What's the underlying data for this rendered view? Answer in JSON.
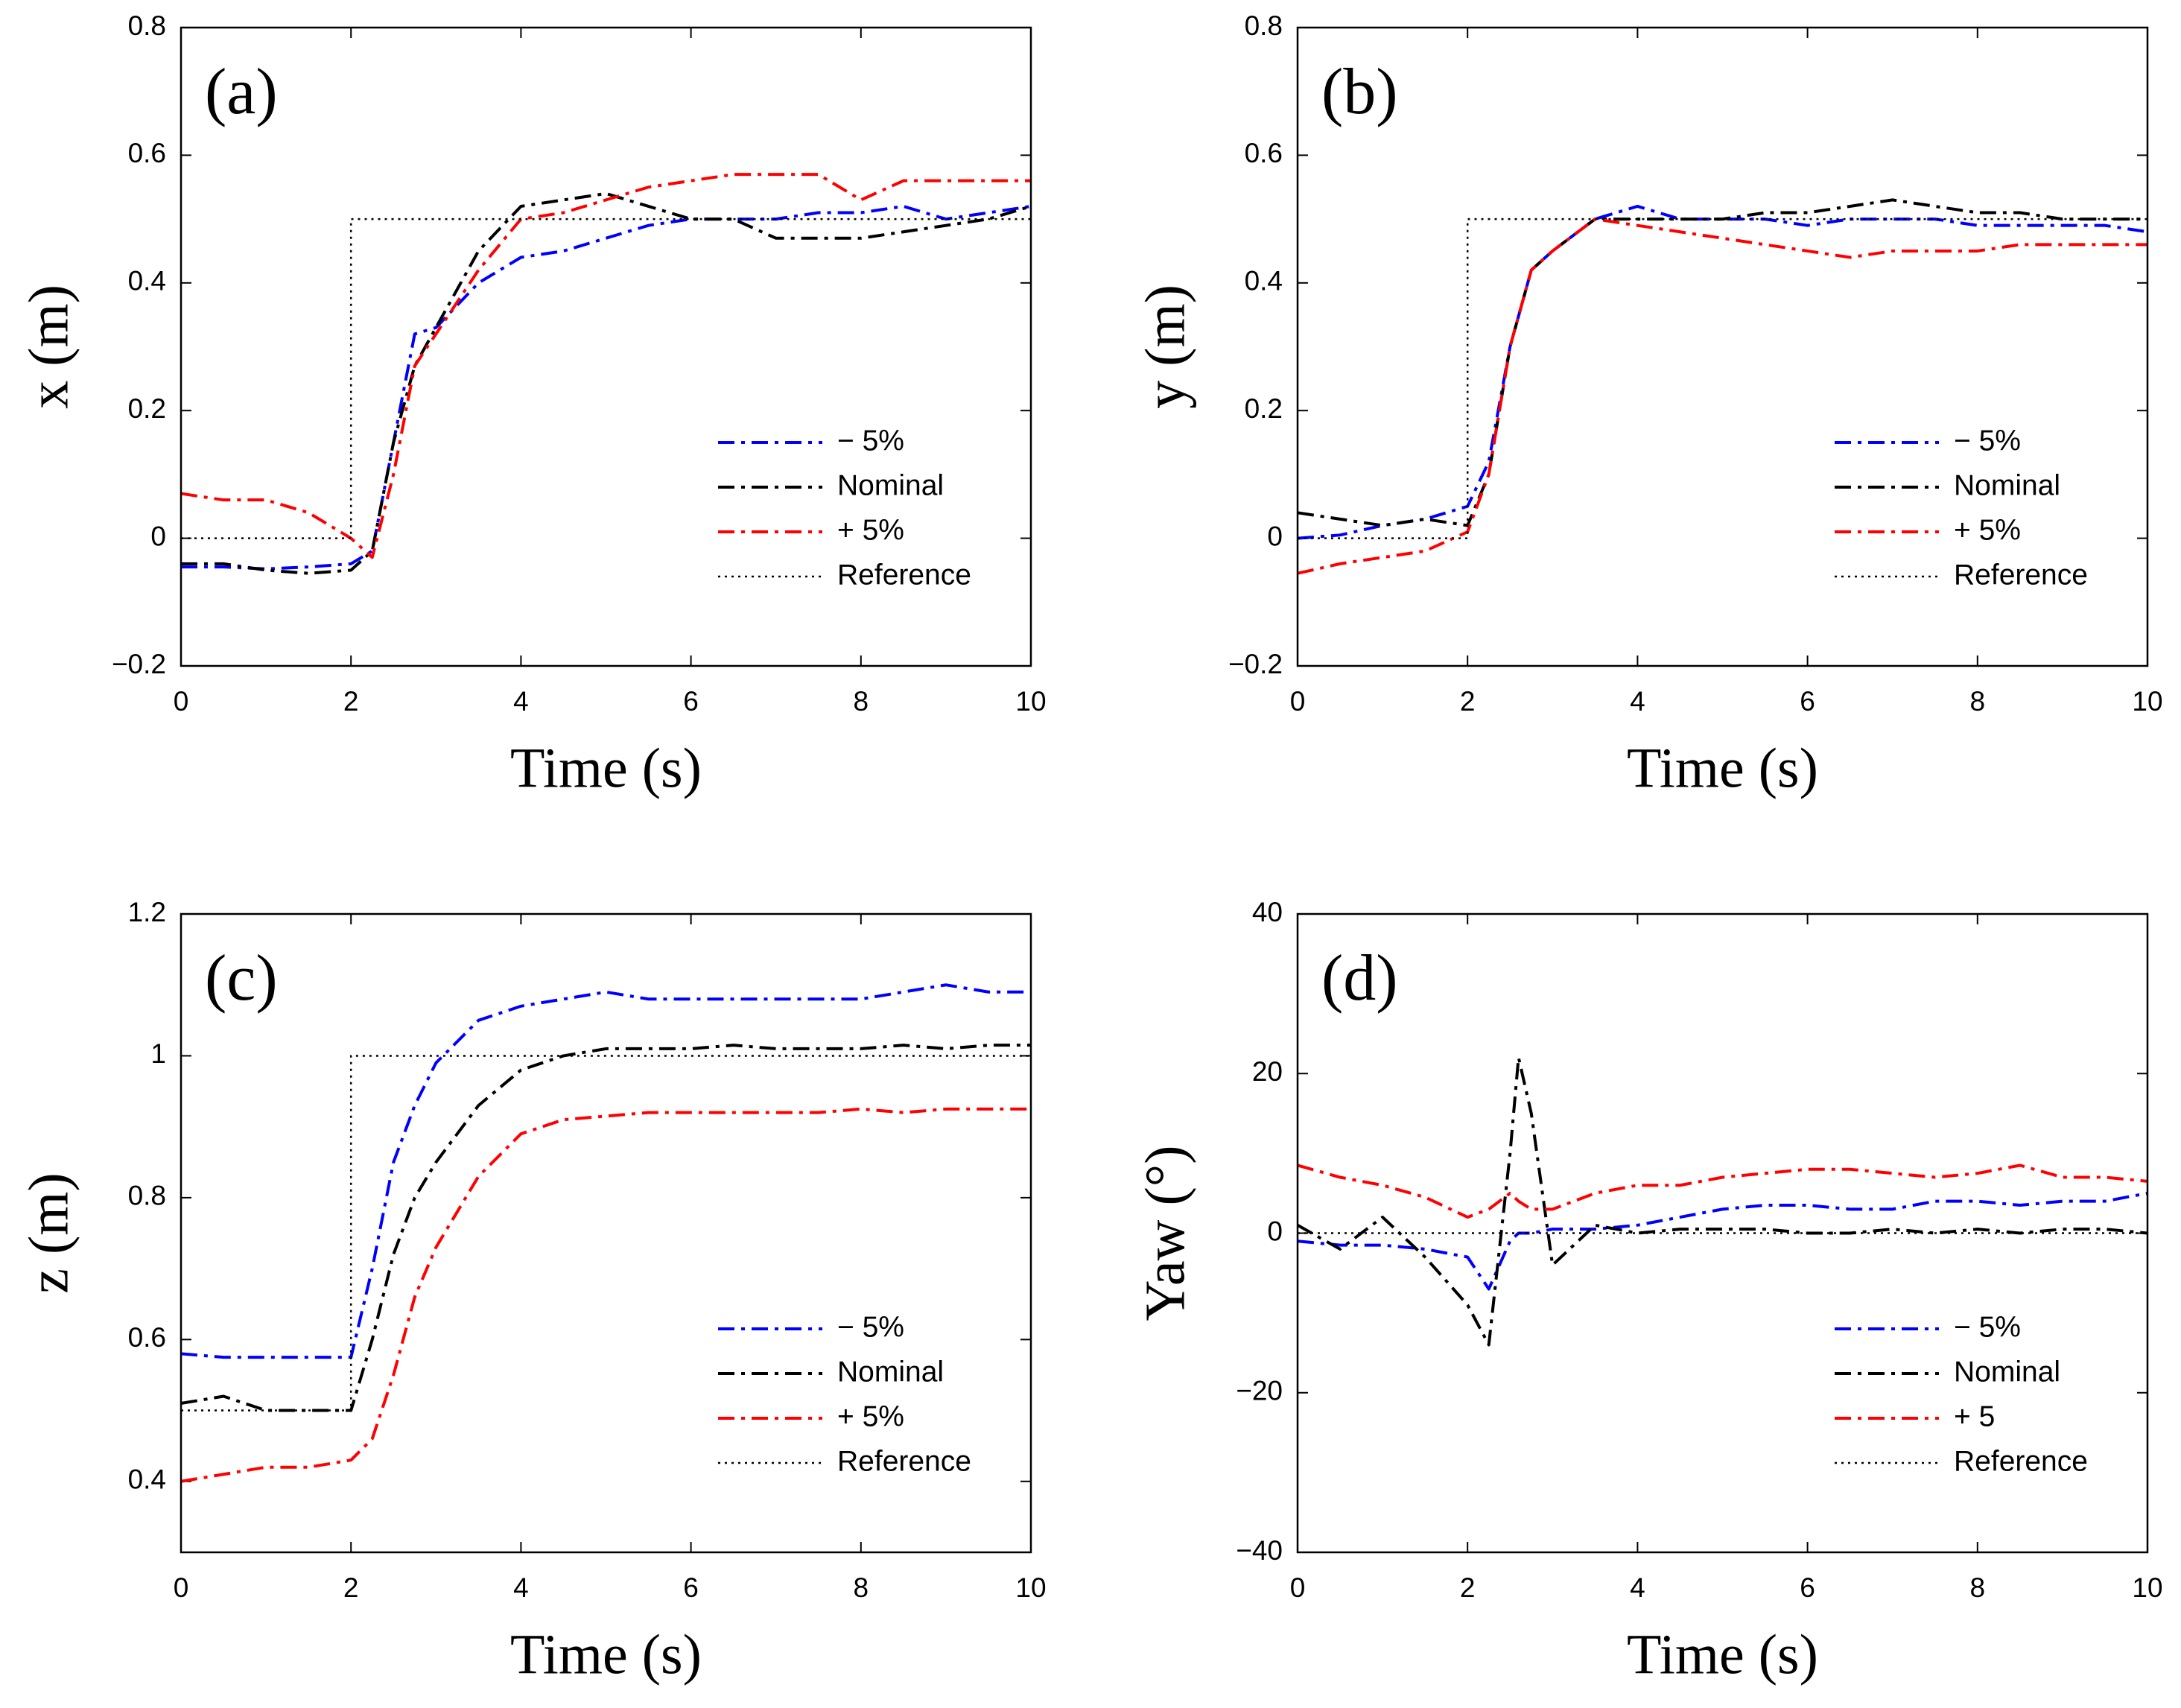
{
  "chart_data": [
    {
      "type": "line",
      "title": "(a)",
      "xlabel": "Time (s)",
      "ylabel": "x (m)",
      "legend": "lower right",
      "xlim": [
        0,
        10
      ],
      "xticks": [
        0,
        2,
        4,
        6,
        8,
        10
      ],
      "ylim": [
        -0.2,
        0.8
      ],
      "yticks": [
        {
          "value": -0.2,
          "label": "−0.2"
        },
        0,
        0.2,
        0.4,
        0.6,
        0.8
      ],
      "x": [
        0,
        0.5,
        1,
        1.5,
        2,
        2.25,
        2.5,
        2.75,
        3,
        3.5,
        4,
        4.5,
        5,
        5.5,
        6,
        6.5,
        7,
        7.5,
        8,
        8.5,
        9,
        9.5,
        10
      ],
      "series": [
        {
          "name": "− 5%",
          "color": "#0000ff",
          "dash": "dashdot",
          "values": [
            -0.045,
            -0.045,
            -0.048,
            -0.045,
            -0.04,
            -0.02,
            0.15,
            0.32,
            0.33,
            0.4,
            0.44,
            0.45,
            0.47,
            0.49,
            0.5,
            0.5,
            0.5,
            0.51,
            0.51,
            0.52,
            0.5,
            0.51,
            0.52
          ]
        },
        {
          "name": "Nominal",
          "color": "#000000",
          "dash": "dashdot",
          "values": [
            -0.04,
            -0.04,
            -0.05,
            -0.055,
            -0.05,
            -0.02,
            0.15,
            0.27,
            0.33,
            0.45,
            0.52,
            0.53,
            0.54,
            0.52,
            0.5,
            0.5,
            0.47,
            0.47,
            0.47,
            0.48,
            0.49,
            0.5,
            0.52
          ]
        },
        {
          "name": "+ 5%",
          "color": "#ff0000",
          "dash": "dashdot",
          "values": [
            0.07,
            0.06,
            0.06,
            0.04,
            0.0,
            -0.03,
            0.1,
            0.27,
            0.32,
            0.42,
            0.5,
            0.51,
            0.53,
            0.55,
            0.56,
            0.57,
            0.57,
            0.57,
            0.53,
            0.56,
            0.56,
            0.56,
            0.56
          ]
        },
        {
          "name": "Reference",
          "color": "#000000",
          "dash": "dotted",
          "x": [
            0,
            2,
            2,
            10
          ],
          "values": [
            0,
            0,
            0.5,
            0.5
          ]
        }
      ]
    },
    {
      "type": "line",
      "title": "(b)",
      "xlabel": "Time (s)",
      "ylabel": "y (m)",
      "legend": "lower right",
      "xlim": [
        0,
        10
      ],
      "xticks": [
        0,
        2,
        4,
        6,
        8,
        10
      ],
      "ylim": [
        -0.2,
        0.8
      ],
      "yticks": [
        {
          "value": -0.2,
          "label": "−0.2"
        },
        0,
        0.2,
        0.4,
        0.6,
        0.8
      ],
      "x": [
        0,
        0.5,
        1,
        1.5,
        2,
        2.25,
        2.5,
        2.75,
        3,
        3.5,
        4,
        4.5,
        5,
        5.5,
        6,
        6.5,
        7,
        7.5,
        8,
        8.5,
        9,
        9.5,
        10
      ],
      "series": [
        {
          "name": "− 5%",
          "color": "#0000ff",
          "dash": "dashdot",
          "values": [
            0,
            0.005,
            0.02,
            0.03,
            0.05,
            0.12,
            0.3,
            0.42,
            0.45,
            0.5,
            0.52,
            0.5,
            0.5,
            0.5,
            0.49,
            0.5,
            0.5,
            0.5,
            0.49,
            0.49,
            0.49,
            0.49,
            0.48
          ]
        },
        {
          "name": "Nominal",
          "color": "#000000",
          "dash": "dashdot",
          "values": [
            0.04,
            0.03,
            0.02,
            0.03,
            0.02,
            0.1,
            0.3,
            0.42,
            0.45,
            0.5,
            0.5,
            0.5,
            0.5,
            0.51,
            0.51,
            0.52,
            0.53,
            0.52,
            0.51,
            0.51,
            0.5,
            0.5,
            0.5
          ]
        },
        {
          "name": "+ 5%",
          "color": "#ff0000",
          "dash": "dashdot",
          "values": [
            -0.055,
            -0.04,
            -0.03,
            -0.02,
            0.01,
            0.1,
            0.3,
            0.42,
            0.45,
            0.5,
            0.49,
            0.48,
            0.47,
            0.46,
            0.45,
            0.44,
            0.45,
            0.45,
            0.45,
            0.46,
            0.46,
            0.46,
            0.46
          ]
        },
        {
          "name": "Reference",
          "color": "#000000",
          "dash": "dotted",
          "x": [
            0,
            2,
            2,
            10
          ],
          "values": [
            0,
            0,
            0.5,
            0.5
          ]
        }
      ]
    },
    {
      "type": "line",
      "title": "(c)",
      "xlabel": "Time (s)",
      "ylabel": "z (m)",
      "legend": "lower right",
      "xlim": [
        0,
        10
      ],
      "xticks": [
        0,
        2,
        4,
        6,
        8,
        10
      ],
      "ylim": [
        0.3,
        1.2
      ],
      "yticks": [
        0.4,
        0.6,
        0.8,
        1,
        1.2
      ],
      "x": [
        0,
        0.5,
        1,
        1.5,
        2,
        2.25,
        2.5,
        2.75,
        3,
        3.5,
        4,
        4.5,
        5,
        5.5,
        6,
        6.5,
        7,
        7.5,
        8,
        8.5,
        9,
        9.5,
        10
      ],
      "series": [
        {
          "name": "− 5%",
          "color": "#0000ff",
          "dash": "dashdot",
          "values": [
            0.58,
            0.575,
            0.575,
            0.575,
            0.575,
            0.7,
            0.85,
            0.93,
            0.99,
            1.05,
            1.07,
            1.08,
            1.09,
            1.08,
            1.08,
            1.08,
            1.08,
            1.08,
            1.08,
            1.09,
            1.1,
            1.09,
            1.09
          ]
        },
        {
          "name": "Nominal",
          "color": "#000000",
          "dash": "dashdot",
          "values": [
            0.51,
            0.52,
            0.5,
            0.5,
            0.5,
            0.6,
            0.72,
            0.8,
            0.85,
            0.93,
            0.98,
            1.0,
            1.01,
            1.01,
            1.01,
            1.015,
            1.01,
            1.01,
            1.01,
            1.015,
            1.01,
            1.015,
            1.015
          ]
        },
        {
          "name": "+ 5%",
          "color": "#ff0000",
          "dash": "dashdot",
          "values": [
            0.4,
            0.41,
            0.42,
            0.42,
            0.43,
            0.46,
            0.55,
            0.66,
            0.73,
            0.83,
            0.89,
            0.91,
            0.915,
            0.92,
            0.92,
            0.92,
            0.92,
            0.92,
            0.925,
            0.92,
            0.925,
            0.925,
            0.925
          ]
        },
        {
          "name": "Reference",
          "color": "#000000",
          "dash": "dotted",
          "x": [
            0,
            2,
            2,
            10
          ],
          "values": [
            0.5,
            0.5,
            1,
            1
          ]
        }
      ]
    },
    {
      "type": "line",
      "title": "(d)",
      "xlabel": "Time (s)",
      "ylabel": "Yaw (°)",
      "legend": "lower right",
      "xlim": [
        0,
        10
      ],
      "xticks": [
        0,
        2,
        4,
        6,
        8,
        10
      ],
      "ylim": [
        -40,
        40
      ],
      "yticks": [
        {
          "value": -40,
          "label": "−40"
        },
        {
          "value": -20,
          "label": "−20"
        },
        0,
        20,
        40
      ],
      "x": [
        0,
        0.5,
        1,
        1.5,
        2,
        2.25,
        2.5,
        2.6,
        2.75,
        3,
        3.5,
        4,
        4.5,
        5,
        5.5,
        6,
        6.5,
        7,
        7.5,
        8,
        8.5,
        9,
        9.5,
        10
      ],
      "series": [
        {
          "name": "− 5%",
          "color": "#0000ff",
          "dash": "dashdot",
          "values": [
            -1,
            -1.5,
            -1.5,
            -2,
            -3,
            -7,
            -1,
            0,
            0,
            0.5,
            0.5,
            1,
            2,
            3,
            3.5,
            3.5,
            3,
            3,
            4,
            4,
            3.5,
            4,
            4,
            5
          ]
        },
        {
          "name": "Nominal",
          "color": "#000000",
          "dash": "dashdot",
          "values": [
            1,
            -2,
            2,
            -3,
            -9,
            -14,
            10,
            22,
            15,
            -4,
            1,
            0,
            0.5,
            0.5,
            0.5,
            0,
            0,
            0.5,
            0,
            0.5,
            0,
            0.5,
            0.5,
            0
          ]
        },
        {
          "name": "+ 5",
          "color": "#ff0000",
          "dash": "dashdot",
          "values": [
            8.5,
            7,
            6,
            4.5,
            2,
            3,
            5,
            4,
            3,
            3,
            5,
            6,
            6,
            7,
            7.5,
            8,
            8,
            7.5,
            7,
            7.5,
            8.5,
            7,
            7,
            6.5
          ]
        },
        {
          "name": "Reference",
          "color": "#000000",
          "dash": "dotted",
          "x": [
            0,
            10
          ],
          "values": [
            0,
            0
          ]
        }
      ]
    }
  ]
}
